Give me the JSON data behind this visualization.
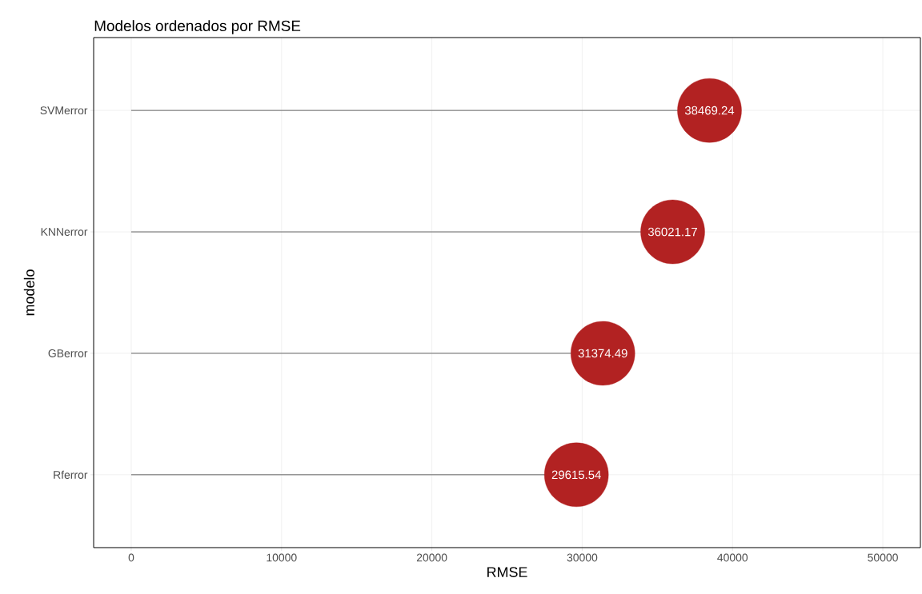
{
  "chart_data": {
    "type": "lollipop",
    "orientation": "horizontal",
    "title": "Modelos ordenados por RMSE",
    "xlabel": "RMSE",
    "ylabel": "modelo",
    "categories": [
      "SVMerror",
      "KNNerror",
      "GBerror",
      "Rferror"
    ],
    "values": [
      38469.24,
      36021.17,
      31374.49,
      29615.54
    ],
    "color": "#b22222",
    "data_labels": true,
    "grid": true,
    "xlim": [
      -2500,
      52500
    ],
    "xticks": [
      0,
      10000,
      20000,
      30000,
      40000,
      50000
    ]
  }
}
